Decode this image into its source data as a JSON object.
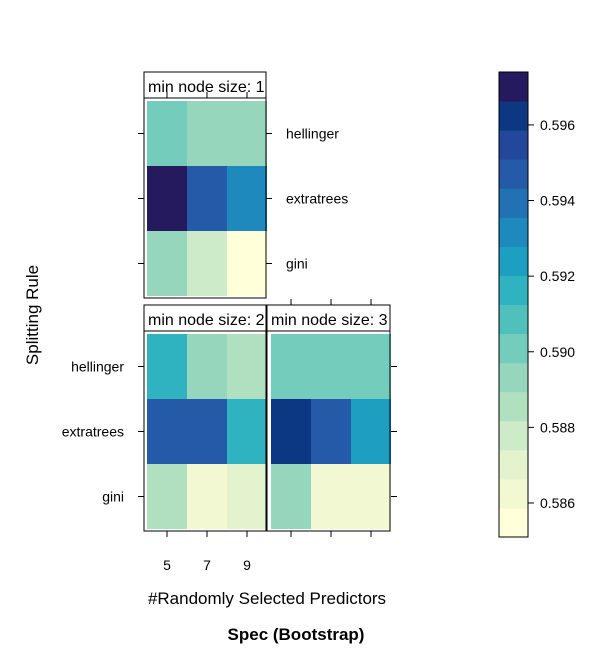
{
  "chart_data": {
    "type": "heatmap",
    "title": "Spec (Bootstrap)",
    "xlabel": "#Randomly Selected Predictors",
    "ylabel": "Splitting Rule",
    "x_tick_labels": [
      "5",
      "7",
      "9"
    ],
    "y_categories": [
      "gini",
      "extratrees",
      "hellinger"
    ],
    "colorbar": {
      "min": 0.5851,
      "max": 0.5974,
      "tick_values": [
        0.586,
        0.588,
        0.59,
        0.592,
        0.594,
        0.596
      ],
      "tick_labels": [
        "0.586",
        "0.588",
        "0.590",
        "0.592",
        "0.594",
        "0.596"
      ],
      "colors": [
        "#ffffd9",
        "#f2f9d2",
        "#e3f3ce",
        "#cdebc8",
        "#b1e0c0",
        "#95d6bd",
        "#74cdbc",
        "#50c0bd",
        "#2fb3c1",
        "#1c9fc1",
        "#1d89bc",
        "#2271b3",
        "#245aa8",
        "#23489b",
        "#0c3883",
        "#261a5f"
      ]
    },
    "panels": [
      {
        "strip": "min node size: 1",
        "rows": {
          "hellinger": [
            0.5903,
            0.5897,
            0.5897
          ],
          "extratrees": [
            0.5973,
            0.5944,
            0.5933
          ],
          "gini": [
            0.5893,
            0.588,
            0.5852
          ]
        }
      },
      {
        "strip": "min node size: 2",
        "rows": {
          "hellinger": [
            0.592,
            0.5893,
            0.5885
          ],
          "extratrees": [
            0.5948,
            0.5948,
            0.5914
          ],
          "gini": [
            0.5885,
            0.5866,
            0.5873
          ]
        }
      },
      {
        "strip": "min node size: 3",
        "rows": {
          "hellinger": [
            0.5903,
            0.5903,
            0.5903
          ],
          "extratrees": [
            0.5964,
            0.5944,
            0.5923
          ],
          "gini": [
            0.5895,
            0.5864,
            0.5864
          ]
        }
      }
    ]
  }
}
